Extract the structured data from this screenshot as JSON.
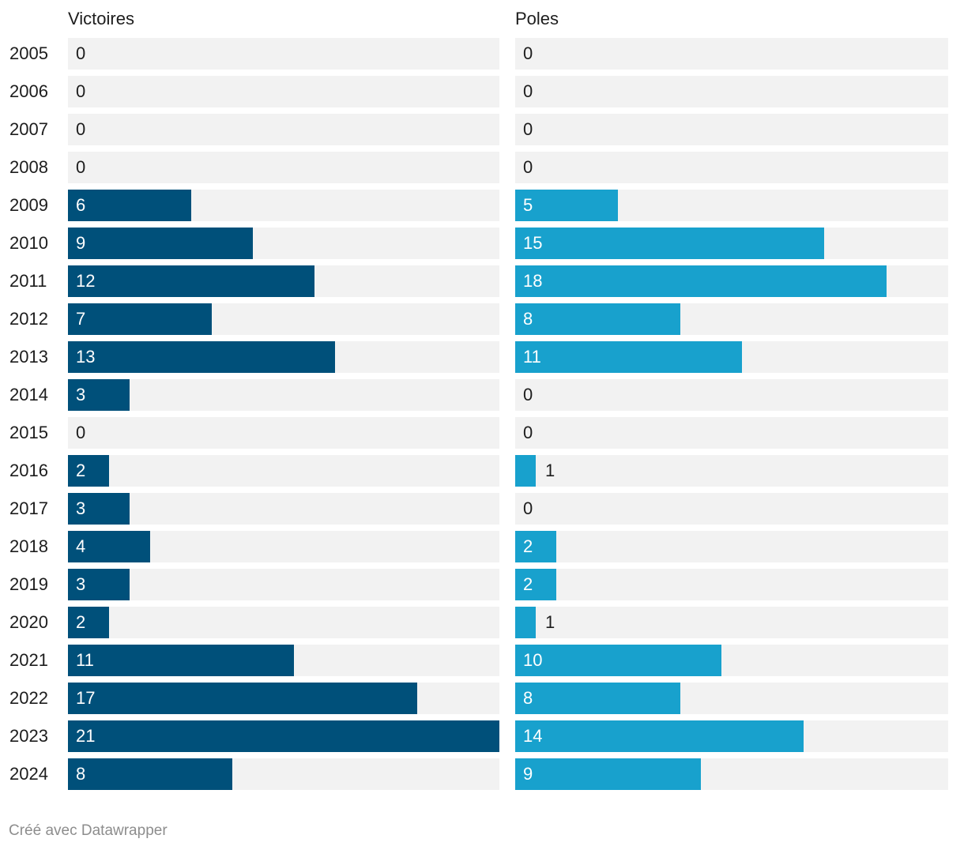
{
  "chart_data": {
    "type": "bar",
    "orientation": "horizontal",
    "categories": [
      "2005",
      "2006",
      "2007",
      "2008",
      "2009",
      "2010",
      "2011",
      "2012",
      "2013",
      "2014",
      "2015",
      "2016",
      "2017",
      "2018",
      "2019",
      "2020",
      "2021",
      "2022",
      "2023",
      "2024"
    ],
    "series": [
      {
        "name": "Victoires",
        "color": "#00507a",
        "values": [
          0,
          0,
          0,
          0,
          6,
          9,
          12,
          7,
          13,
          3,
          0,
          2,
          3,
          4,
          3,
          2,
          11,
          17,
          21,
          8
        ]
      },
      {
        "name": "Poles",
        "color": "#18a1cd",
        "values": [
          0,
          0,
          0,
          0,
          5,
          15,
          18,
          8,
          11,
          0,
          0,
          1,
          0,
          2,
          2,
          1,
          10,
          8,
          14,
          9
        ]
      }
    ],
    "xlim": [
      0,
      21
    ],
    "grid": false
  },
  "footer": {
    "credit": "Créé avec Datawrapper"
  }
}
